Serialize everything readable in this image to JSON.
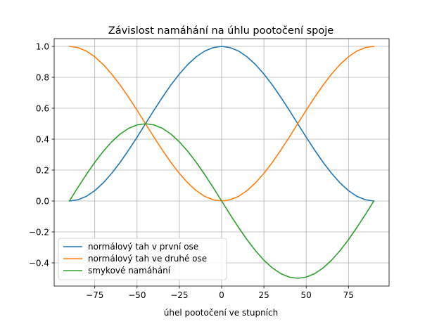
{
  "chart_data": {
    "type": "line",
    "title": "Závislost namáhání na úhlu pootočení spoje",
    "xlabel": "úhel pootočení ve stupních",
    "ylabel": "",
    "xlim": [
      -99,
      99
    ],
    "ylim": [
      -0.55,
      1.05
    ],
    "xticks": [
      -75,
      -50,
      -25,
      0,
      25,
      50,
      75
    ],
    "xtick_labels": [
      "−75",
      "−50",
      "−25",
      "0",
      "25",
      "50",
      "75"
    ],
    "yticks": [
      -0.4,
      -0.2,
      0.0,
      0.2,
      0.4,
      0.6,
      0.8,
      1.0
    ],
    "ytick_labels": [
      "−0.4",
      "−0.2",
      "0.0",
      "0.2",
      "0.4",
      "0.6",
      "0.8",
      "1.0"
    ],
    "grid": true,
    "legend_position": "lower-left",
    "x": [
      -90,
      -85,
      -80,
      -75,
      -70,
      -65,
      -60,
      -55,
      -50,
      -45,
      -40,
      -35,
      -30,
      -25,
      -20,
      -15,
      -10,
      -5,
      0,
      5,
      10,
      15,
      20,
      25,
      30,
      35,
      40,
      45,
      50,
      55,
      60,
      65,
      70,
      75,
      80,
      85,
      90
    ],
    "series": [
      {
        "name": "normálový tah v první ose",
        "color": "#1f77b4",
        "values": [
          0.0,
          0.008,
          0.03,
          0.067,
          0.117,
          0.179,
          0.25,
          0.329,
          0.413,
          0.5,
          0.587,
          0.671,
          0.75,
          0.821,
          0.883,
          0.933,
          0.97,
          0.992,
          1.0,
          0.992,
          0.97,
          0.933,
          0.883,
          0.821,
          0.75,
          0.671,
          0.587,
          0.5,
          0.413,
          0.329,
          0.25,
          0.179,
          0.117,
          0.067,
          0.03,
          0.008,
          0.0
        ]
      },
      {
        "name": "normálový tah ve druhé ose",
        "color": "#ff7f0e",
        "values": [
          1.0,
          0.992,
          0.97,
          0.933,
          0.883,
          0.821,
          0.75,
          0.671,
          0.587,
          0.5,
          0.413,
          0.329,
          0.25,
          0.179,
          0.117,
          0.067,
          0.03,
          0.008,
          0.0,
          0.008,
          0.03,
          0.067,
          0.117,
          0.179,
          0.25,
          0.329,
          0.413,
          0.5,
          0.587,
          0.671,
          0.75,
          0.821,
          0.883,
          0.933,
          0.97,
          0.992,
          1.0
        ]
      },
      {
        "name": "smykové namáhání",
        "color": "#2ca02c",
        "values": [
          0.0,
          0.087,
          0.171,
          0.25,
          0.321,
          0.383,
          0.433,
          0.47,
          0.492,
          0.5,
          0.492,
          0.47,
          0.433,
          0.383,
          0.321,
          0.25,
          0.171,
          0.087,
          0.0,
          -0.087,
          -0.171,
          -0.25,
          -0.321,
          -0.383,
          -0.433,
          -0.47,
          -0.492,
          -0.5,
          -0.492,
          -0.47,
          -0.433,
          -0.383,
          -0.321,
          -0.25,
          -0.171,
          -0.087,
          0.0
        ]
      }
    ]
  }
}
